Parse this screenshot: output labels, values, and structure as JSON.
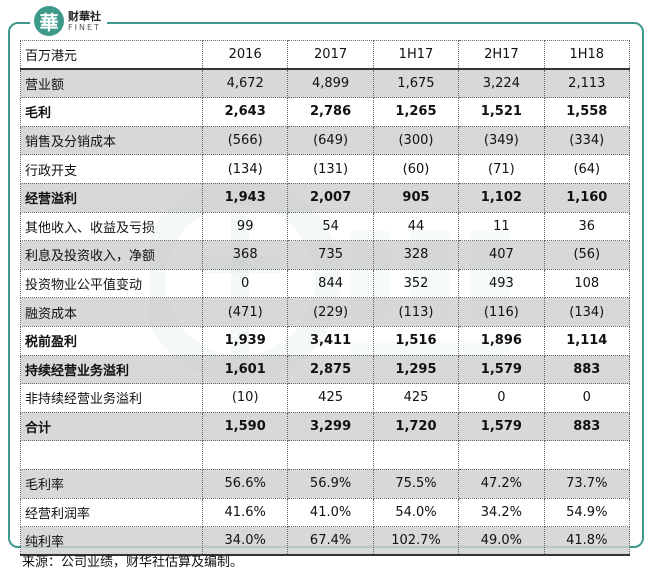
{
  "logo": {
    "mark": "華",
    "name_cn": "财華社",
    "name_en": "FINET"
  },
  "table": {
    "header": [
      "百万港元",
      "2016",
      "2017",
      "1H17",
      "2H17",
      "1H18"
    ],
    "rows": [
      {
        "cells": [
          "营业额",
          "4,672",
          "4,899",
          "1,675",
          "3,224",
          "2,113"
        ],
        "shade": true,
        "bold": false
      },
      {
        "cells": [
          "毛利",
          "2,643",
          "2,786",
          "1,265",
          "1,521",
          "1,558"
        ],
        "shade": false,
        "bold": true
      },
      {
        "cells": [
          "销售及分销成本",
          "(566)",
          "(649)",
          "(300)",
          "(349)",
          "(334)"
        ],
        "shade": true,
        "bold": false
      },
      {
        "cells": [
          "行政开支",
          "(134)",
          "(131)",
          "(60)",
          "(71)",
          "(64)"
        ],
        "shade": false,
        "bold": false
      },
      {
        "cells": [
          "经营溢利",
          "1,943",
          "2,007",
          "905",
          "1,102",
          "1,160"
        ],
        "shade": true,
        "bold": true
      },
      {
        "cells": [
          "其他收入、收益及亏损",
          "99",
          "54",
          "44",
          "11",
          "36"
        ],
        "shade": false,
        "bold": false
      },
      {
        "cells": [
          "利息及投资收入，净额",
          "368",
          "735",
          "328",
          "407",
          "(56)"
        ],
        "shade": true,
        "bold": false
      },
      {
        "cells": [
          "投资物业公平值变动",
          "0",
          "844",
          "352",
          "493",
          "108"
        ],
        "shade": false,
        "bold": false
      },
      {
        "cells": [
          "融资成本",
          "(471)",
          "(229)",
          "(113)",
          "(116)",
          "(134)"
        ],
        "shade": true,
        "bold": false
      },
      {
        "cells": [
          "税前盈利",
          "1,939",
          "3,411",
          "1,516",
          "1,896",
          "1,114"
        ],
        "shade": false,
        "bold": true
      },
      {
        "cells": [
          "持续经营业务溢利",
          "1,601",
          "2,875",
          "1,295",
          "1,579",
          "883"
        ],
        "shade": true,
        "bold": true
      },
      {
        "cells": [
          "非持续经营业务溢利",
          "(10)",
          "425",
          "425",
          "0",
          "0"
        ],
        "shade": false,
        "bold": false
      },
      {
        "cells": [
          "合计",
          "1,590",
          "3,299",
          "1,720",
          "1,579",
          "883"
        ],
        "shade": true,
        "bold": true
      },
      {
        "cells": [
          "",
          "",
          "",
          "",
          "",
          ""
        ],
        "shade": false,
        "bold": false
      },
      {
        "cells": [
          "毛利率",
          "56.6%",
          "56.9%",
          "75.5%",
          "47.2%",
          "73.7%"
        ],
        "shade": true,
        "bold": false
      },
      {
        "cells": [
          "经营利润率",
          "41.6%",
          "41.0%",
          "54.0%",
          "34.2%",
          "54.9%"
        ],
        "shade": false,
        "bold": false
      },
      {
        "cells": [
          "纯利率",
          "34.0%",
          "67.4%",
          "102.7%",
          "49.0%",
          "41.8%"
        ],
        "shade": true,
        "bold": false
      }
    ]
  },
  "source": "来源：公司业绩，财华社估算及编制。",
  "colors": {
    "brand": "#3f9a8c",
    "shade": "#d0d0d0"
  }
}
